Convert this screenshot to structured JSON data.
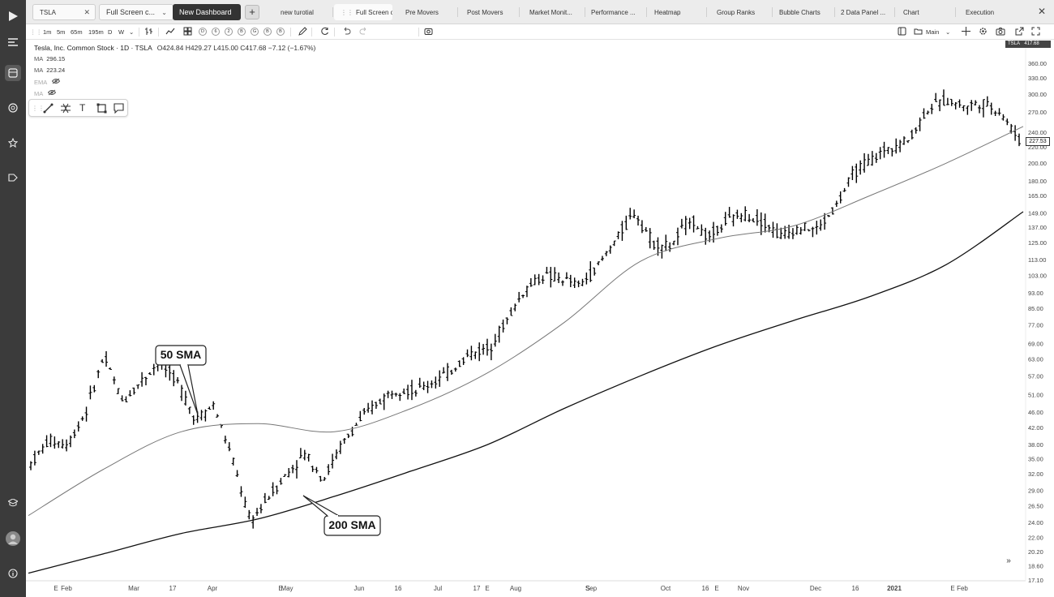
{
  "tabs": {
    "symbol": "TSLA",
    "active_tab": "Full Screen c...",
    "new_dashboard": "New Dashboard",
    "plus": "+",
    "close_all": "✕",
    "items": [
      "new turotial",
      "Full Screen ch...",
      "Pre Movers",
      "Post Movers",
      "Market Monit...",
      "Performance ...",
      "Heatmap",
      "Group Ranks",
      "Bubble Charts",
      "2 Data Panel ...",
      "Chart",
      "Execution"
    ]
  },
  "toolbar": {
    "intervals": [
      "1m",
      "5m",
      "65m",
      "195m",
      "D",
      "W"
    ],
    "dots": [
      "D",
      "6",
      "2",
      "B",
      "G",
      "B",
      "B"
    ],
    "layout_label": "Main"
  },
  "header": {
    "title": "Tesla, Inc. Common Stock · 1D · TSLA",
    "ohlc": "O424.84  H429.27  L415.00  C417.68  −7.12 (−1.67%)",
    "symbol_tag": "TSLA",
    "symbol_price": "417.68"
  },
  "indicators": [
    {
      "name": "MA",
      "value": "296.15"
    },
    {
      "name": "MA",
      "value": "223.24"
    },
    {
      "name": "EMA",
      "value": "",
      "hidden": true
    },
    {
      "name": "MA",
      "value": "",
      "hidden": true
    }
  ],
  "last_price": "227.53",
  "callouts": {
    "sma50": "50 SMA",
    "sma200": "200 SMA"
  },
  "colors": {
    "rail": "#3b3b3b",
    "candle": "#000000",
    "sma50": "#777777",
    "sma200": "#111111"
  },
  "chart_data": {
    "type": "line",
    "scale": "log",
    "series": [
      {
        "points": [
          [
            "Jan",
            34
          ],
          [
            "Jan",
            39
          ],
          [
            "Jan",
            38
          ],
          [
            "Feb",
            46
          ],
          [
            "Feb",
            64
          ],
          [
            "Feb",
            49
          ],
          [
            "Feb",
            55
          ],
          [
            "Feb",
            62
          ],
          [
            "Mar",
            55
          ],
          [
            "Mar",
            44
          ],
          [
            "Mar",
            48
          ],
          [
            "Mar",
            35
          ],
          [
            "Mar",
            24
          ],
          [
            "Mar",
            28
          ],
          [
            "Apr",
            32
          ],
          [
            "Apr",
            36
          ],
          [
            "Apr",
            31
          ],
          [
            "Apr",
            38
          ],
          [
            "Apr",
            44
          ],
          [
            "May",
            49
          ],
          [
            "May",
            53
          ],
          [
            "May",
            52
          ],
          [
            "May",
            55
          ],
          [
            "Jun",
            59
          ],
          [
            "Jun",
            65
          ],
          [
            "Jun",
            67
          ],
          [
            "Jul",
            79
          ],
          [
            "Jul",
            95
          ],
          [
            "Jul",
            103
          ],
          [
            "Jul",
            101
          ],
          [
            "Aug",
            97
          ],
          [
            "Aug",
            109
          ],
          [
            "Aug",
            128
          ],
          [
            "Aug",
            150
          ],
          [
            "Sep",
            125
          ],
          [
            "Sep",
            122
          ],
          [
            "Sep",
            145
          ],
          [
            "Sep",
            128
          ],
          [
            "Oct",
            142
          ],
          [
            "Oct",
            148
          ],
          [
            "Oct",
            142
          ],
          [
            "Nov",
            130
          ],
          [
            "Nov",
            137
          ],
          [
            "Nov",
            135
          ],
          [
            "Nov",
            155
          ],
          [
            "Dec",
            190
          ],
          [
            "Dec",
            205
          ],
          [
            "Dec",
            220
          ],
          [
            "Dec",
            230
          ],
          [
            "Jan",
            275
          ],
          [
            "Jan",
            290
          ],
          [
            "Jan",
            280
          ],
          [
            "Feb",
            285
          ],
          [
            "Feb",
            270
          ],
          [
            "Feb",
            228
          ]
        ]
      },
      {
        "points": [
          [
            "Jan",
            25
          ],
          [
            "Feb",
            33
          ],
          [
            "Mar",
            41
          ],
          [
            "Apr",
            43
          ],
          [
            "May",
            41
          ],
          [
            "Jun",
            47
          ],
          [
            "Jul",
            58
          ],
          [
            "Aug",
            78
          ],
          [
            "Sep",
            112
          ],
          [
            "Oct",
            128
          ],
          [
            "Nov",
            138
          ],
          [
            "Dec",
            165
          ],
          [
            "Jan",
            200
          ],
          [
            "Feb",
            248
          ]
        ]
      },
      {
        "points": [
          [
            "Jan",
            17.8
          ],
          [
            "Feb",
            20
          ],
          [
            "Mar",
            22.5
          ],
          [
            "Apr",
            24.5
          ],
          [
            "May",
            28
          ],
          [
            "Jun",
            32.5
          ],
          [
            "Jul",
            38
          ],
          [
            "Aug",
            47
          ],
          [
            "Sep",
            57
          ],
          [
            "Oct",
            68
          ],
          [
            "Nov",
            79
          ],
          [
            "Dec",
            91
          ],
          [
            "Jan",
            110
          ],
          [
            "Feb",
            150
          ]
        ]
      }
    ],
    "yticks": [
      "360.00",
      "330.00",
      "300.00",
      "270.00",
      "240.00",
      "220.00",
      "200.00",
      "180.00",
      "165.00",
      "149.00",
      "137.00",
      "125.00",
      "113.00",
      "103.00",
      "93.00",
      "85.00",
      "77.00",
      "69.00",
      "63.00",
      "57.00",
      "51.00",
      "46.00",
      "42.00",
      "38.00",
      "35.00",
      "32.00",
      "29.00",
      "26.50",
      "24.00",
      "22.00",
      "20.20",
      "18.60",
      "17.10"
    ],
    "xticks": [
      "E",
      "Feb",
      "Mar",
      "17",
      "Apr",
      "E",
      "May",
      "Jun",
      "16",
      "Jul",
      "17",
      "E",
      "Aug",
      "S",
      "Sep",
      "Oct",
      "16",
      "E",
      "Nov",
      "Dec",
      "16",
      "2021",
      "E",
      "Feb"
    ],
    "ylim": [
      17.1,
      360
    ]
  }
}
